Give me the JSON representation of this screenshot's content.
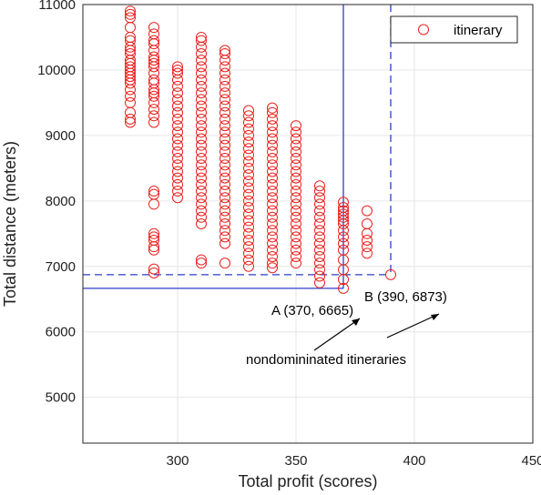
{
  "chart_data": {
    "type": "scatter",
    "xlabel": "Total profit (scores)",
    "ylabel": "Total distance (meters)",
    "xlim": [
      260,
      450
    ],
    "ylim": [
      4300,
      11000
    ],
    "xticks": [
      "300",
      "350",
      "400",
      "450"
    ],
    "yticks": [
      "5000",
      "6000",
      "7000",
      "8000",
      "9000",
      "10000",
      "11000"
    ],
    "grid": true,
    "legend": {
      "position": "top-right",
      "entries": [
        "itinerary"
      ]
    },
    "marker_color": "#e8221f",
    "line_color": "#2b3fc6",
    "series": [
      {
        "name": "itinerary",
        "columns": [
          {
            "x": 280,
            "y": [
              9200,
              9250,
              9350,
              9500,
              9600,
              9700,
              9800,
              9850,
              9900,
              9950,
              10000,
              10050,
              10100,
              10150,
              10250,
              10300,
              10350,
              10450,
              10500,
              10650,
              10800,
              10850,
              10900
            ]
          },
          {
            "x": 290,
            "y": [
              6900,
              6960,
              7250,
              7300,
              7400,
              7450,
              7500,
              7950,
              8100,
              8150,
              9200,
              9300,
              9400,
              9500,
              9600,
              9650,
              9700,
              9800,
              9850,
              9950,
              10050,
              10100,
              10150,
              10200,
              10300,
              10400,
              10450,
              10550,
              10650
            ]
          },
          {
            "x": 300,
            "y": [
              8050,
              8150,
              8250,
              8350,
              8450,
              8550,
              8650,
              8750,
              8850,
              8950,
              9050,
              9150,
              9250,
              9350,
              9450,
              9550,
              9650,
              9750,
              9850,
              9950,
              10000,
              10050
            ]
          },
          {
            "x": 310,
            "y": [
              7050,
              7100,
              7650,
              7750,
              7850,
              7950,
              8050,
              8150,
              8250,
              8350,
              8450,
              8550,
              8650,
              8750,
              8850,
              8950,
              9050,
              9150,
              9250,
              9350,
              9450,
              9550,
              9650,
              9750,
              9850,
              9950,
              10050,
              10150,
              10250,
              10350,
              10450,
              10500
            ]
          },
          {
            "x": 320,
            "y": [
              7050,
              7350,
              7450,
              7550,
              7650,
              7750,
              7850,
              7950,
              8050,
              8150,
              8250,
              8350,
              8450,
              8550,
              8650,
              8750,
              8850,
              8950,
              9050,
              9150,
              9250,
              9350,
              9450,
              9550,
              9650,
              9750,
              9850,
              9950,
              10050,
              10150,
              10250,
              10300
            ]
          },
          {
            "x": 330,
            "y": [
              7000,
              7100,
              7200,
              7300,
              7400,
              7500,
              7600,
              7700,
              7800,
              7900,
              8000,
              8100,
              8200,
              8300,
              8400,
              8500,
              8600,
              8700,
              8800,
              8900,
              9000,
              9100,
              9200,
              9300,
              9380
            ]
          },
          {
            "x": 340,
            "y": [
              6980,
              7050,
              7150,
              7250,
              7350,
              7450,
              7550,
              7650,
              7750,
              7850,
              7950,
              8050,
              8150,
              8250,
              8350,
              8450,
              8550,
              8650,
              8750,
              8850,
              8950,
              9050,
              9150,
              9250,
              9350,
              9420
            ]
          },
          {
            "x": 350,
            "y": [
              7050,
              7150,
              7250,
              7350,
              7450,
              7550,
              7650,
              7750,
              7850,
              7950,
              8050,
              8150,
              8250,
              8350,
              8450,
              8550,
              8650,
              8750,
              8850,
              8950,
              9050,
              9150
            ]
          },
          {
            "x": 360,
            "y": [
              6750,
              6850,
              6950,
              7050,
              7150,
              7250,
              7350,
              7450,
              7550,
              7650,
              7750,
              7850,
              7950,
              8050,
              8150,
              8230
            ]
          },
          {
            "x": 370,
            "y": [
              6665,
              6800,
              6950,
              7100,
              7250,
              7350,
              7450,
              7550,
              7650,
              7700,
              7750,
              7800,
              7850,
              7900,
              7980
            ]
          },
          {
            "x": 380,
            "y": [
              7200,
              7300,
              7400,
              7500,
              7650,
              7850
            ]
          },
          {
            "x": 390,
            "y": [
              6873
            ]
          }
        ]
      }
    ],
    "annotations": [
      {
        "text": "A (370, 6665)",
        "point": [
          370,
          6665
        ]
      },
      {
        "text": "B (390, 6873)",
        "point": [
          390,
          6873
        ]
      },
      {
        "text": "nondomininated itineraries"
      }
    ]
  }
}
